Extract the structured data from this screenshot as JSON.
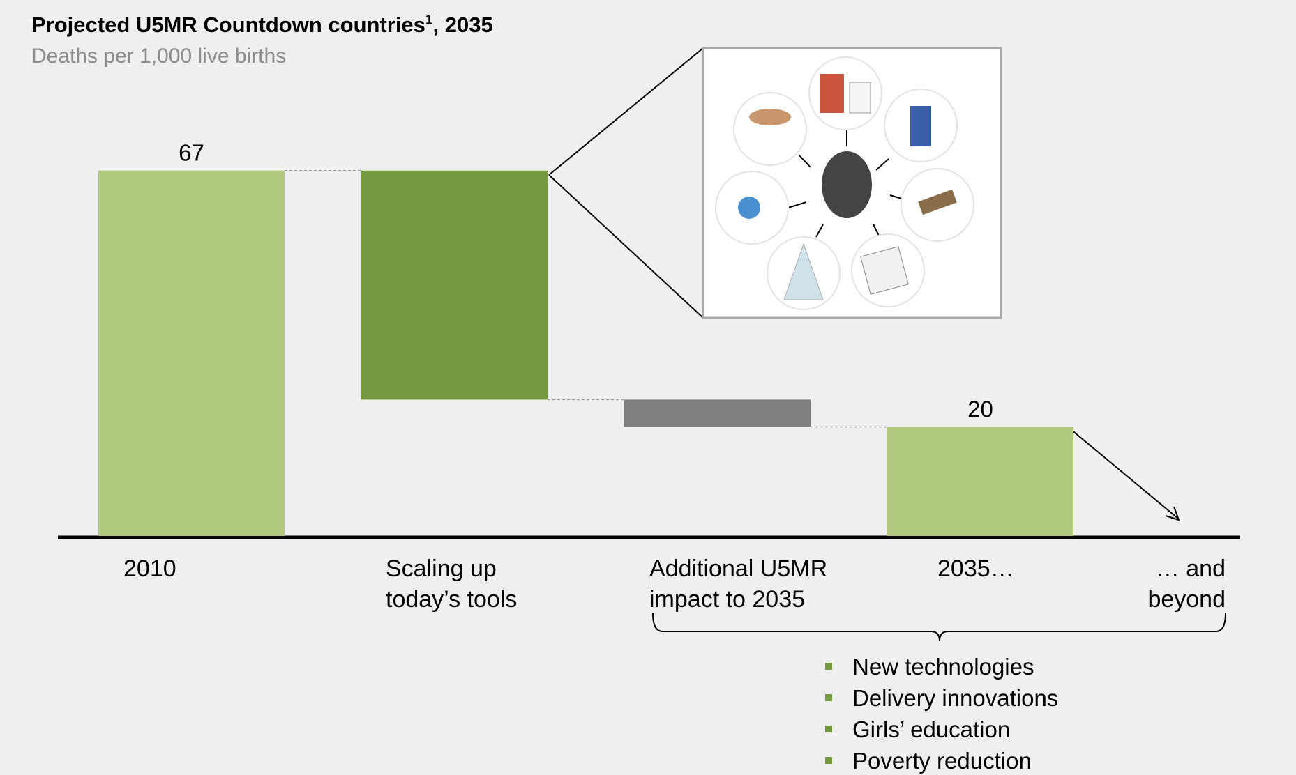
{
  "chart_data": {
    "type": "waterfall",
    "title": "Projected U5MR Countdown countries",
    "title_footnote": "1",
    "title_suffix": ", 2035",
    "subtitle": "Deaths per 1,000 live births",
    "categories": [
      "2010",
      "Scaling up today’s tools",
      "Additional U5MR impact to 2035",
      "2035…",
      "… and beyond"
    ],
    "values": [
      67,
      -42,
      -5,
      20,
      null
    ],
    "measures": [
      "absolute",
      "relative",
      "relative",
      "total",
      null
    ],
    "colors": [
      "#b1c97f",
      "#74993f",
      "#7f7f7f",
      "#b1c97f",
      null
    ],
    "ylim": [
      0,
      80
    ],
    "bullets": [
      "New technologies",
      "Delivery innovations",
      "Girls’ education",
      "Poverty reduction"
    ]
  }
}
